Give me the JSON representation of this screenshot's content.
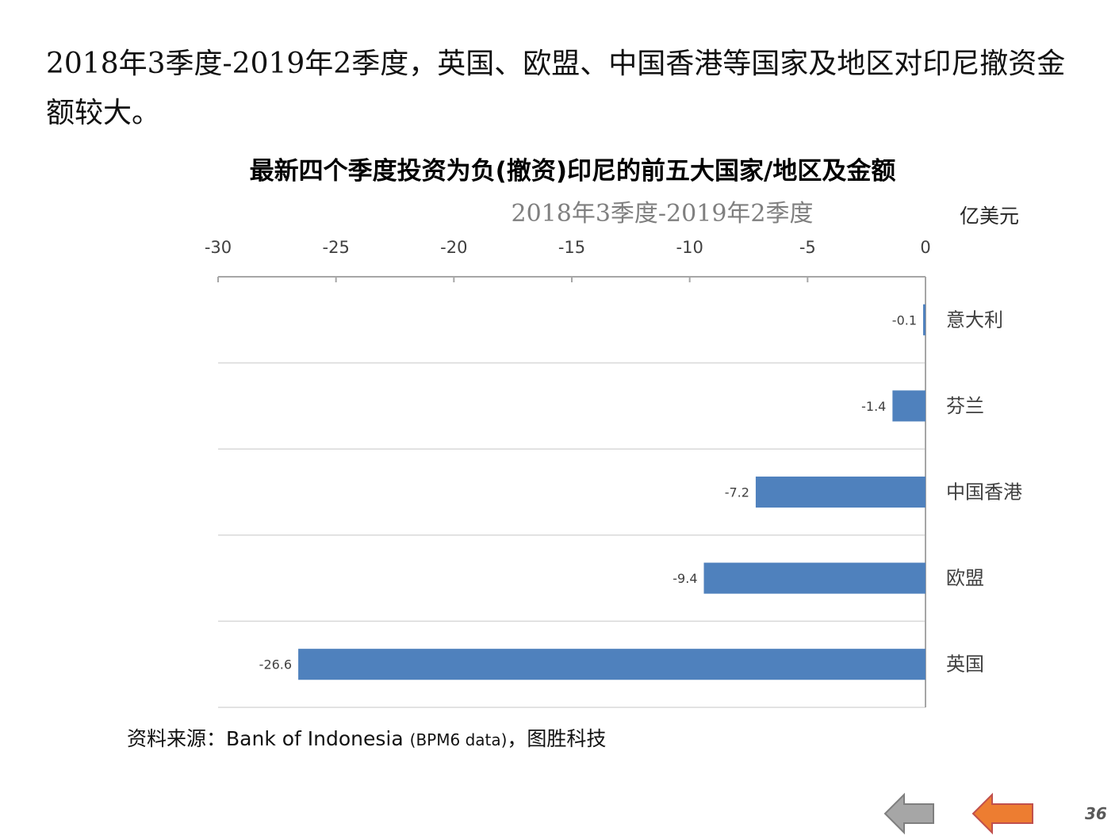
{
  "intro_text": "2018年3季度-2019年2季度，英国、欧盟、中国香港等国家及地区对印尼撤资金额较大。",
  "unit": "亿美元",
  "source": {
    "prefix": "资料来源：Bank of Indonesia ",
    "paren": "(BPM6 data)",
    "suffix": "，图胜科技"
  },
  "page_number": "36",
  "nav": {
    "prev_color": "#a6a6a6",
    "next_color": "#ed7d31"
  },
  "chart_data": {
    "type": "bar",
    "orientation": "horizontal",
    "title": "最新四个季度投资为负(撤资)印尼的前五大国家/地区及金额",
    "subtitle": "2018年3季度-2019年2季度",
    "categories": [
      "意大利",
      "芬兰",
      "中国香港",
      "欧盟",
      "英国"
    ],
    "values": [
      -0.1,
      -1.4,
      -7.2,
      -9.4,
      -26.6
    ],
    "data_labels": [
      "-0.1",
      "-1.4",
      "-7.2",
      "-9.4",
      "-26.6"
    ],
    "xlim": [
      -30,
      0
    ],
    "x_ticks": [
      -30,
      -25,
      -20,
      -15,
      -10,
      -5,
      0
    ],
    "x_axis_position": "top",
    "category_axis_position": "right",
    "grid": true,
    "bar_color": "#4f81bd"
  }
}
